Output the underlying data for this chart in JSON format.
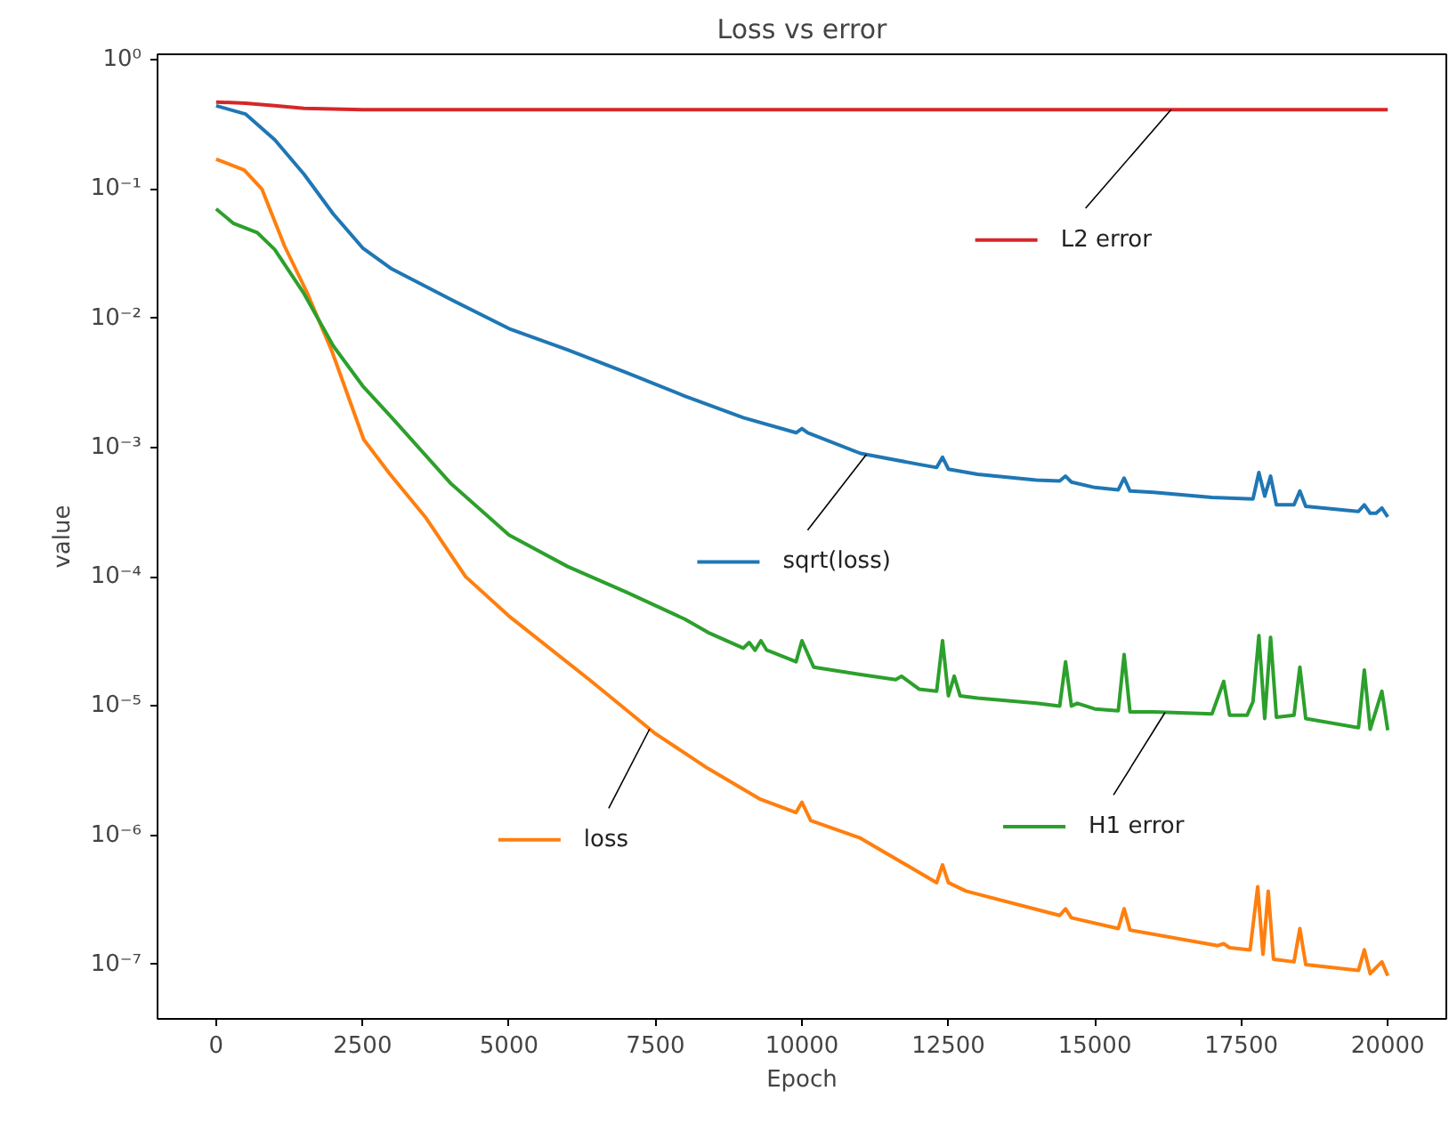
{
  "chart_data": {
    "type": "line",
    "title": "Loss vs error",
    "xlabel": "Epoch",
    "ylabel": "value",
    "log": "y",
    "grid": false,
    "legend": "center",
    "xlim": [
      -1000,
      21000
    ],
    "xticks": [
      0,
      2500,
      5000,
      7500,
      10000,
      12500,
      15000,
      17500,
      20000
    ],
    "ylim": [
      3.8e-08,
      1.1
    ],
    "yticks": [
      {
        "value": 1,
        "label": "10⁰"
      },
      {
        "value": 0.1,
        "label": "10⁻¹"
      },
      {
        "value": 0.01,
        "label": "10⁻²"
      },
      {
        "value": 0.001,
        "label": "10⁻³"
      },
      {
        "value": 0.0001,
        "label": "10⁻⁴"
      },
      {
        "value": 1e-05,
        "label": "10⁻⁵"
      },
      {
        "value": 1e-06,
        "label": "10⁻⁶"
      },
      {
        "value": 1e-07,
        "label": "10⁻⁷"
      }
    ],
    "series": [
      {
        "name": "sqrt(loss)",
        "color": "#1f77b4",
        "x": [
          0,
          500,
          1000,
          1500,
          2000,
          2500,
          3000,
          4000,
          5000,
          6000,
          7000,
          8000,
          9000,
          9900,
          10000,
          10100,
          11000,
          12000,
          12300,
          12400,
          12500,
          13000,
          14000,
          14400,
          14500,
          14600,
          15000,
          15400,
          15500,
          15600,
          16000,
          17000,
          17700,
          17800,
          17900,
          18000,
          18100,
          18400,
          18500,
          18600,
          19500,
          19600,
          19700,
          19800,
          19900,
          20000
        ],
        "values": [
          0.44,
          0.38,
          0.24,
          0.13,
          0.064,
          0.035,
          0.024,
          0.014,
          0.0083,
          0.0057,
          0.0038,
          0.0025,
          0.0017,
          0.0013,
          0.0014,
          0.0013,
          0.0009,
          0.00074,
          0.0007,
          0.00084,
          0.00068,
          0.00062,
          0.00056,
          0.00055,
          0.0006,
          0.00054,
          0.00049,
          0.00047,
          0.00058,
          0.00046,
          0.00045,
          0.00041,
          0.0004,
          0.00064,
          0.00042,
          0.0006,
          0.00036,
          0.00036,
          0.00046,
          0.00035,
          0.00032,
          0.00036,
          0.00031,
          0.00031,
          0.00034,
          0.00029
        ]
      },
      {
        "name": "loss",
        "color": "#ff7f0e",
        "x": [
          0,
          480,
          780,
          1170,
          1560,
          1980,
          2520,
          2970,
          3570,
          4260,
          4990,
          6370,
          7480,
          8390,
          9290,
          9900,
          10000,
          10150,
          11000,
          12300,
          12400,
          12500,
          12800,
          14400,
          14500,
          14600,
          15400,
          15500,
          15600,
          17100,
          17200,
          17300,
          17650,
          17780,
          17870,
          17960,
          18050,
          18400,
          18500,
          18600,
          19500,
          19600,
          19700,
          19900,
          20000
        ],
        "values": [
          0.17,
          0.14,
          0.1,
          0.036,
          0.0155,
          0.0055,
          0.00115,
          0.00062,
          0.00029,
          0.0001,
          5e-05,
          1.6e-05,
          6.2e-06,
          3.3e-06,
          1.9e-06,
          1.5e-06,
          1.8e-06,
          1.3e-06,
          9.5e-07,
          4.3e-07,
          5.9e-07,
          4.3e-07,
          3.7e-07,
          2.4e-07,
          2.7e-07,
          2.3e-07,
          1.9e-07,
          2.7e-07,
          1.85e-07,
          1.4e-07,
          1.45e-07,
          1.35e-07,
          1.3e-07,
          4e-07,
          1.2e-07,
          3.7e-07,
          1.1e-07,
          1.05e-07,
          1.9e-07,
          1e-07,
          9e-08,
          1.3e-07,
          8.5e-08,
          1.05e-07,
          8.2e-08
        ]
      },
      {
        "name": "H1 error",
        "color": "#2ca02c",
        "x": [
          0,
          300,
          700,
          1000,
          1500,
          2000,
          2500,
          3000,
          4000,
          5000,
          6000,
          7000,
          8000,
          8400,
          9000,
          9100,
          9200,
          9300,
          9400,
          9500,
          9900,
          10000,
          10200,
          11000,
          11600,
          11700,
          12000,
          12300,
          12400,
          12500,
          12600,
          12700,
          13000,
          14000,
          14400,
          14500,
          14600,
          14700,
          15000,
          15400,
          15500,
          15600,
          16000,
          17000,
          17200,
          17300,
          17600,
          17700,
          17800,
          17900,
          18000,
          18100,
          18400,
          18500,
          18600,
          19500,
          19600,
          19700,
          19900,
          20000
        ],
        "values": [
          0.07,
          0.054,
          0.046,
          0.034,
          0.0155,
          0.0061,
          0.003,
          0.0017,
          0.00053,
          0.00021,
          0.00012,
          7.6e-05,
          4.7e-05,
          3.7e-05,
          2.8e-05,
          3.1e-05,
          2.7e-05,
          3.2e-05,
          2.7e-05,
          2.6e-05,
          2.2e-05,
          3.2e-05,
          2e-05,
          1.75e-05,
          1.6e-05,
          1.7e-05,
          1.35e-05,
          1.3e-05,
          3.2e-05,
          1.2e-05,
          1.7e-05,
          1.2e-05,
          1.15e-05,
          1.05e-05,
          1e-05,
          2.2e-05,
          1e-05,
          1.05e-05,
          9.5e-06,
          9.2e-06,
          2.5e-05,
          9e-06,
          9e-06,
          8.7e-06,
          1.55e-05,
          8.5e-06,
          8.5e-06,
          1.08e-05,
          3.5e-05,
          8e-06,
          3.4e-05,
          8.2e-06,
          8.5e-06,
          2e-05,
          8e-06,
          6.8e-06,
          1.9e-05,
          6.6e-06,
          1.3e-05,
          6.5e-06
        ]
      },
      {
        "name": "L2 error",
        "color": "#d62728",
        "x": [
          0,
          500,
          1000,
          1500,
          2500,
          20000
        ],
        "values": [
          0.47,
          0.46,
          0.44,
          0.42,
          0.41,
          0.41
        ]
      }
    ]
  }
}
